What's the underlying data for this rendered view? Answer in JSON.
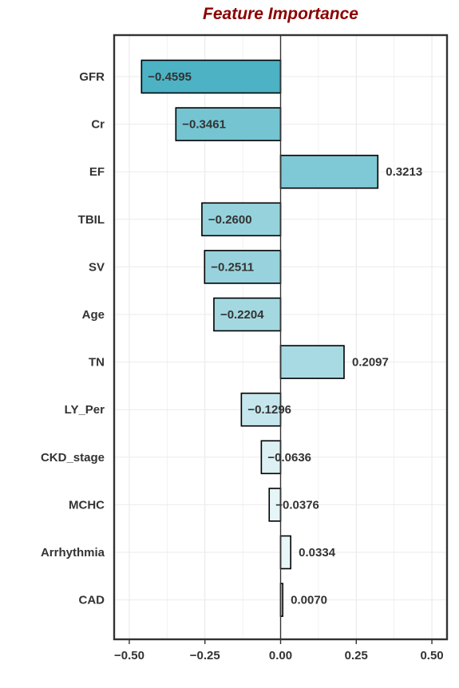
{
  "chart_data": {
    "type": "bar",
    "orientation": "horizontal",
    "title": "Feature Importance",
    "xlabel": "",
    "ylabel": "",
    "xlim": [
      -0.55,
      0.55
    ],
    "x_ticks": [
      -0.5,
      -0.25,
      0.0,
      0.25,
      0.5
    ],
    "x_tick_labels": [
      "−0.50",
      "−0.25",
      "0.00",
      "0.25",
      "0.50"
    ],
    "grid": true,
    "categories": [
      "GFR",
      "Cr",
      "EF",
      "TBIL",
      "SV",
      "Age",
      "TN",
      "LY_Per",
      "CKD_stage",
      "MCHC",
      "Arrhythmia",
      "CAD"
    ],
    "values": [
      -0.4595,
      -0.3461,
      0.3213,
      -0.26,
      -0.2511,
      -0.2204,
      0.2097,
      -0.1296,
      -0.0636,
      -0.0376,
      0.0334,
      0.007
    ],
    "value_labels": [
      "−0.4595",
      "−0.3461",
      "0.3213",
      "−0.2600",
      "−0.2511",
      "−0.2204",
      "0.2097",
      "−0.1296",
      "−0.0636",
      "−0.0376",
      "0.0334",
      "0.0070"
    ],
    "color_scale": {
      "low": "#f4fbfc",
      "high": "#4cb2c4"
    }
  }
}
